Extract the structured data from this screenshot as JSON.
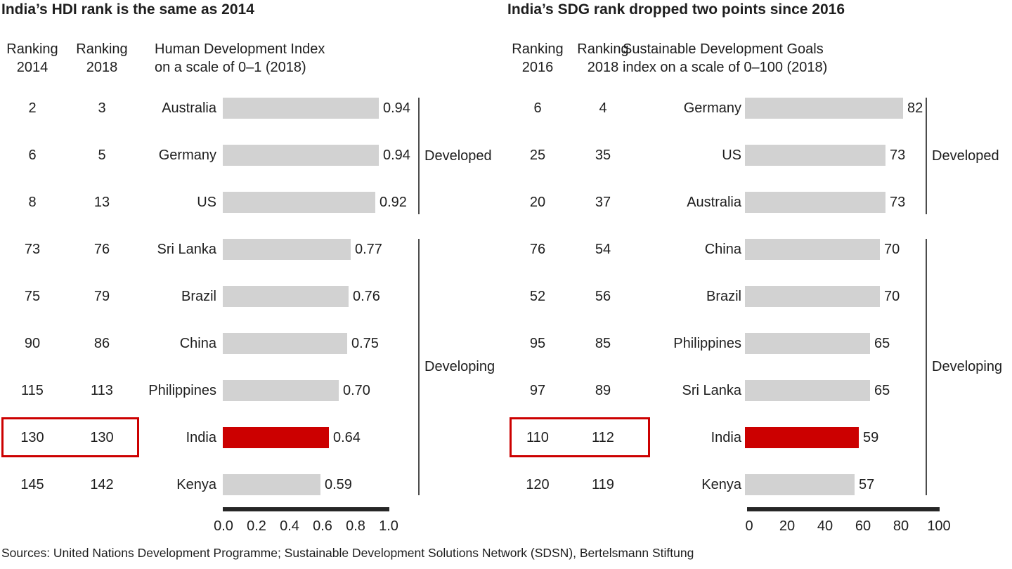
{
  "sources": "Sources: United Nations Development Programme; Sustainable Development Solutions Network (SDSN), Bertelsmann Stiftung",
  "colors": {
    "text": "#1e1e1e",
    "bar_gray": "#d2d2d2",
    "highlight_red": "#cc0000",
    "axis_black": "#262626",
    "divider_gray": "#4d4d4d"
  },
  "chart_data": [
    {
      "type": "bar",
      "orientation": "horizontal",
      "title": "India’s HDI rank is the same as 2014",
      "rank_col_headers": [
        [
          "Ranking",
          "2014"
        ],
        [
          "Ranking",
          "2018"
        ]
      ],
      "index_header": [
        "Human Development Index",
        "on a scale of 0–1 (2018)"
      ],
      "axis": {
        "range": [
          0,
          1
        ],
        "ticks": [
          "0.0",
          "0.2",
          "0.4",
          "0.6",
          "0.8",
          "1.0"
        ]
      },
      "groups": [
        {
          "label": "Developed"
        },
        {
          "label": "Developing"
        }
      ],
      "rows": [
        {
          "rank_prev": "2",
          "rank_2018": "3",
          "country": "Australia",
          "value": 0.94,
          "value_label": "0.94",
          "group": "Developed",
          "highlight": false
        },
        {
          "rank_prev": "6",
          "rank_2018": "5",
          "country": "Germany",
          "value": 0.94,
          "value_label": "0.94",
          "group": "Developed",
          "highlight": false
        },
        {
          "rank_prev": "8",
          "rank_2018": "13",
          "country": "US",
          "value": 0.92,
          "value_label": "0.92",
          "group": "Developed",
          "highlight": false
        },
        {
          "rank_prev": "73",
          "rank_2018": "76",
          "country": "Sri Lanka",
          "value": 0.77,
          "value_label": "0.77",
          "group": "Developing",
          "highlight": false
        },
        {
          "rank_prev": "75",
          "rank_2018": "79",
          "country": "Brazil",
          "value": 0.76,
          "value_label": "0.76",
          "group": "Developing",
          "highlight": false
        },
        {
          "rank_prev": "90",
          "rank_2018": "86",
          "country": "China",
          "value": 0.75,
          "value_label": "0.75",
          "group": "Developing",
          "highlight": false
        },
        {
          "rank_prev": "115",
          "rank_2018": "113",
          "country": "Philippines",
          "value": 0.7,
          "value_label": "0.70",
          "group": "Developing",
          "highlight": false
        },
        {
          "rank_prev": "130",
          "rank_2018": "130",
          "country": "India",
          "value": 0.64,
          "value_label": "0.64",
          "group": "Developing",
          "highlight": true
        },
        {
          "rank_prev": "145",
          "rank_2018": "142",
          "country": "Kenya",
          "value": 0.59,
          "value_label": "0.59",
          "group": "Developing",
          "highlight": false
        }
      ]
    },
    {
      "type": "bar",
      "orientation": "horizontal",
      "title": "India’s SDG rank dropped two points since 2016",
      "rank_col_headers": [
        [
          "Ranking",
          "2016"
        ],
        [
          "Ranking",
          "2018"
        ]
      ],
      "index_header": [
        "Sustainable Development Goals",
        "index on a scale of 0–100 (2018)"
      ],
      "axis": {
        "range": [
          0,
          100
        ],
        "ticks": [
          "0",
          "20",
          "40",
          "60",
          "80",
          "100"
        ]
      },
      "groups": [
        {
          "label": "Developed"
        },
        {
          "label": "Developing"
        }
      ],
      "rows": [
        {
          "rank_prev": "6",
          "rank_2018": "4",
          "country": "Germany",
          "value": 82,
          "value_label": "82",
          "group": "Developed",
          "highlight": false
        },
        {
          "rank_prev": "25",
          "rank_2018": "35",
          "country": "US",
          "value": 73,
          "value_label": "73",
          "group": "Developed",
          "highlight": false
        },
        {
          "rank_prev": "20",
          "rank_2018": "37",
          "country": "Australia",
          "value": 73,
          "value_label": "73",
          "group": "Developed",
          "highlight": false
        },
        {
          "rank_prev": "76",
          "rank_2018": "54",
          "country": "China",
          "value": 70,
          "value_label": "70",
          "group": "Developing",
          "highlight": false
        },
        {
          "rank_prev": "52",
          "rank_2018": "56",
          "country": "Brazil",
          "value": 70,
          "value_label": "70",
          "group": "Developing",
          "highlight": false
        },
        {
          "rank_prev": "95",
          "rank_2018": "85",
          "country": "Philippines",
          "value": 65,
          "value_label": "65",
          "group": "Developing",
          "highlight": false
        },
        {
          "rank_prev": "97",
          "rank_2018": "89",
          "country": "Sri Lanka",
          "value": 65,
          "value_label": "65",
          "group": "Developing",
          "highlight": false
        },
        {
          "rank_prev": "110",
          "rank_2018": "112",
          "country": "India",
          "value": 59,
          "value_label": "59",
          "group": "Developing",
          "highlight": true
        },
        {
          "rank_prev": "120",
          "rank_2018": "119",
          "country": "Kenya",
          "value": 57,
          "value_label": "57",
          "group": "Developing",
          "highlight": false
        }
      ]
    }
  ]
}
